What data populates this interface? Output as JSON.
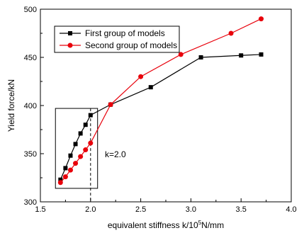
{
  "chart_data": {
    "type": "line",
    "xlabel": "equivalent stiffness k/10",
    "xlabel_sup": "5",
    "xlabel_suffix": "N/mm",
    "ylabel": "Yield force/kN",
    "xlim": [
      1.5,
      4.0
    ],
    "ylim": [
      300,
      500
    ],
    "xticks": [
      "1.5",
      "2.0",
      "2.5",
      "3.0",
      "3.5",
      "4.0"
    ],
    "yticks": [
      "300",
      "350",
      "400",
      "450",
      "500"
    ],
    "grid": false,
    "legend_position": "top-left",
    "series": [
      {
        "name": "First group of models",
        "color": "#000000",
        "marker": "square",
        "x": [
          1.7,
          1.75,
          1.8,
          1.85,
          1.9,
          1.95,
          2.0,
          2.2,
          2.6,
          3.1,
          3.5,
          3.7
        ],
        "y": [
          323,
          335,
          348,
          360,
          371,
          380,
          390,
          401,
          419,
          450,
          452,
          453
        ]
      },
      {
        "name": "Second group of models",
        "color": "#e8000b",
        "marker": "circle",
        "x": [
          1.7,
          1.75,
          1.8,
          1.85,
          1.9,
          1.95,
          2.0,
          2.2,
          2.5,
          2.9,
          3.4,
          3.7
        ],
        "y": [
          320,
          326,
          333,
          340,
          347,
          354,
          361,
          401,
          430,
          453,
          475,
          490
        ]
      }
    ],
    "annotations": {
      "k_label": "k=2.0",
      "k_value": 2.0,
      "highlight_box": {
        "x": [
          1.65,
          2.07
        ],
        "y": [
          314,
          397
        ]
      }
    }
  }
}
